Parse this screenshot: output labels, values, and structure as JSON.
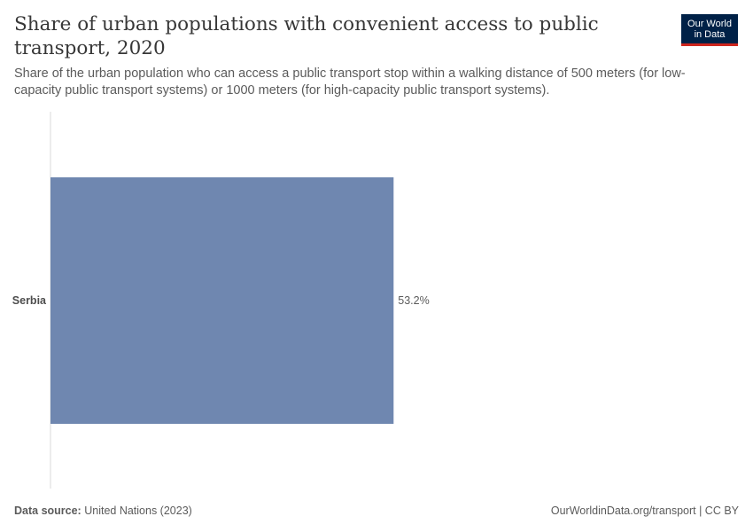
{
  "header": {
    "title": "Share of urban populations with convenient access to public transport, 2020",
    "subtitle": "Share of the urban population who can access a public transport stop within a walking distance of 500 meters (for low-capacity public transport systems) or 1000 meters (for high-capacity public transport systems).",
    "logo_line1": "Our World",
    "logo_line2": "in Data"
  },
  "chart_data": {
    "type": "bar",
    "orientation": "horizontal",
    "categories": [
      "Serbia"
    ],
    "values": [
      53.2
    ],
    "value_labels": [
      "53.2%"
    ],
    "xlim": [
      0,
      100
    ],
    "colors": [
      "#6f87b0"
    ],
    "grid": false
  },
  "footer": {
    "source_label": "Data source:",
    "source_value": "United Nations (2023)",
    "credit": "OurWorldinData.org/transport | CC BY"
  }
}
